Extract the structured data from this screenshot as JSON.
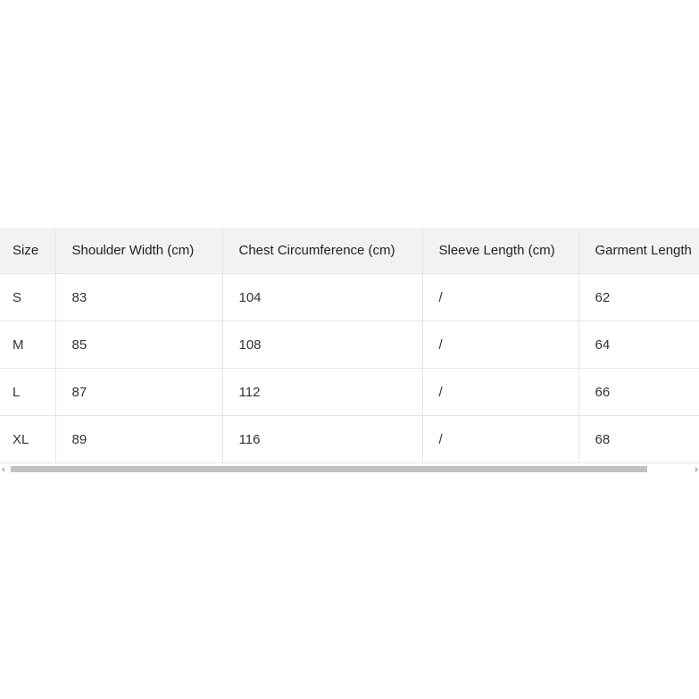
{
  "table": {
    "header": [
      "Size",
      "Shoulder Width (cm)",
      "Chest Circumference (cm)",
      "Sleeve Length (cm)",
      "Garment Length"
    ],
    "rows": [
      [
        "S",
        83,
        104,
        "/",
        62
      ],
      [
        "M",
        85,
        108,
        "/",
        64
      ],
      [
        "L",
        87,
        112,
        "/",
        66
      ],
      [
        "XL",
        89,
        116,
        "/",
        68
      ]
    ]
  }
}
